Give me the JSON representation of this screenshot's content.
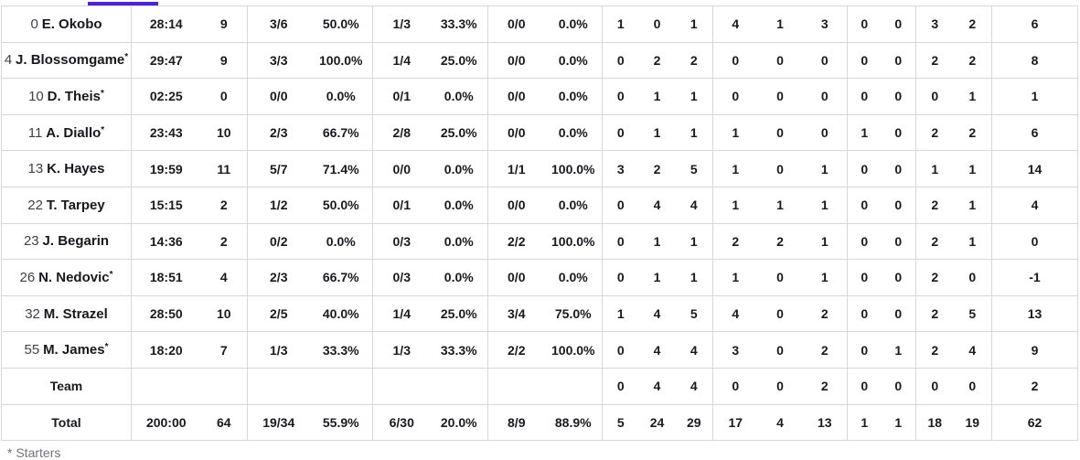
{
  "tab": {
    "active_indicator_color": "#4f23d0"
  },
  "box_score": {
    "rows": [
      {
        "number": "0",
        "name": "E. Okobo",
        "starter": false,
        "stats": [
          "28:14",
          "9",
          "3/6",
          "50.0%",
          "1/3",
          "33.3%",
          "0/0",
          "0.0%",
          "1",
          "0",
          "1",
          "4",
          "1",
          "3",
          "0",
          "0",
          "3",
          "2",
          "6"
        ]
      },
      {
        "number": "4",
        "name": "J. Blossomgame",
        "starter": true,
        "stats": [
          "29:47",
          "9",
          "3/3",
          "100.0%",
          "1/4",
          "25.0%",
          "0/0",
          "0.0%",
          "0",
          "2",
          "2",
          "0",
          "0",
          "0",
          "0",
          "0",
          "2",
          "2",
          "8"
        ]
      },
      {
        "number": "10",
        "name": "D. Theis",
        "starter": true,
        "stats": [
          "02:25",
          "0",
          "0/0",
          "0.0%",
          "0/1",
          "0.0%",
          "0/0",
          "0.0%",
          "0",
          "1",
          "1",
          "0",
          "0",
          "0",
          "0",
          "0",
          "0",
          "1",
          "1"
        ]
      },
      {
        "number": "11",
        "name": "A. Diallo",
        "starter": true,
        "stats": [
          "23:43",
          "10",
          "2/3",
          "66.7%",
          "2/8",
          "25.0%",
          "0/0",
          "0.0%",
          "0",
          "1",
          "1",
          "1",
          "0",
          "0",
          "1",
          "0",
          "2",
          "2",
          "6"
        ]
      },
      {
        "number": "13",
        "name": "K. Hayes",
        "starter": false,
        "stats": [
          "19:59",
          "11",
          "5/7",
          "71.4%",
          "0/0",
          "0.0%",
          "1/1",
          "100.0%",
          "3",
          "2",
          "5",
          "1",
          "0",
          "1",
          "0",
          "0",
          "1",
          "1",
          "14"
        ]
      },
      {
        "number": "22",
        "name": "T. Tarpey",
        "starter": false,
        "stats": [
          "15:15",
          "2",
          "1/2",
          "50.0%",
          "0/1",
          "0.0%",
          "0/0",
          "0.0%",
          "0",
          "4",
          "4",
          "1",
          "1",
          "1",
          "0",
          "0",
          "2",
          "1",
          "4"
        ]
      },
      {
        "number": "23",
        "name": "J. Begarin",
        "starter": false,
        "stats": [
          "14:36",
          "2",
          "0/2",
          "0.0%",
          "0/3",
          "0.0%",
          "2/2",
          "100.0%",
          "0",
          "1",
          "1",
          "2",
          "2",
          "1",
          "0",
          "0",
          "2",
          "1",
          "0"
        ]
      },
      {
        "number": "26",
        "name": "N. Nedovic",
        "starter": true,
        "stats": [
          "18:51",
          "4",
          "2/3",
          "66.7%",
          "0/3",
          "0.0%",
          "0/0",
          "0.0%",
          "0",
          "1",
          "1",
          "1",
          "0",
          "1",
          "0",
          "0",
          "2",
          "0",
          "-1"
        ]
      },
      {
        "number": "32",
        "name": "M. Strazel",
        "starter": false,
        "stats": [
          "28:50",
          "10",
          "2/5",
          "40.0%",
          "1/4",
          "25.0%",
          "3/4",
          "75.0%",
          "1",
          "4",
          "5",
          "4",
          "0",
          "2",
          "0",
          "0",
          "2",
          "5",
          "13"
        ]
      },
      {
        "number": "55",
        "name": "M. James",
        "starter": true,
        "stats": [
          "18:20",
          "7",
          "1/3",
          "33.3%",
          "1/3",
          "33.3%",
          "2/2",
          "100.0%",
          "0",
          "4",
          "4",
          "3",
          "0",
          "2",
          "0",
          "1",
          "2",
          "4",
          "9"
        ]
      },
      {
        "label": "Team",
        "stats": [
          "",
          "",
          "",
          "",
          "",
          "",
          "",
          "",
          "0",
          "4",
          "4",
          "0",
          "0",
          "2",
          "0",
          "0",
          "0",
          "0",
          "2"
        ]
      },
      {
        "label": "Total",
        "stats": [
          "200:00",
          "64",
          "19/34",
          "55.9%",
          "6/30",
          "20.0%",
          "8/9",
          "88.9%",
          "5",
          "24",
          "29",
          "17",
          "4",
          "13",
          "1",
          "1",
          "18",
          "19",
          "62"
        ]
      }
    ]
  },
  "footnote": "* Starters"
}
